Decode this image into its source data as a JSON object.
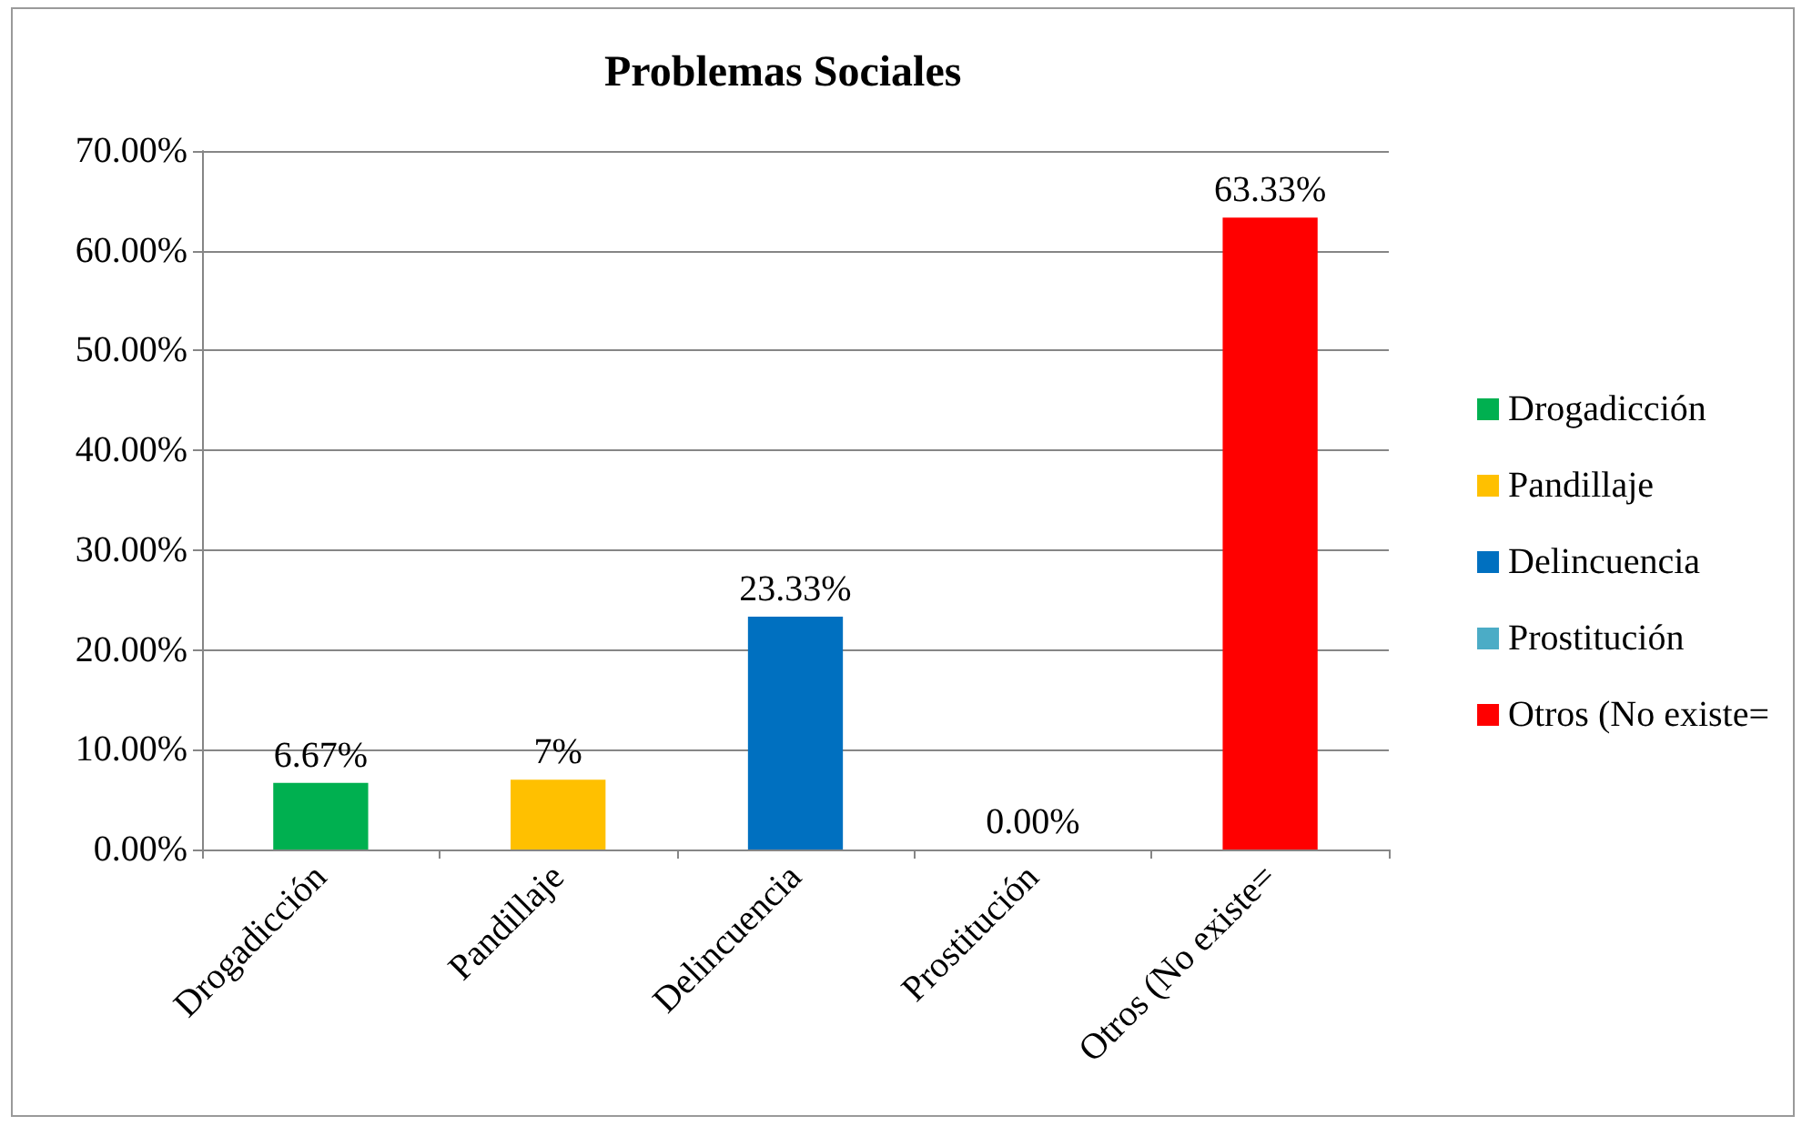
{
  "chart_data": {
    "type": "bar",
    "title": "Problemas Sociales",
    "categories": [
      "Drogadicción",
      "Pandillaje",
      "Delincuencia",
      "Prostitución",
      "Otros (No existe="
    ],
    "series": [
      {
        "name": "Drogadicción",
        "color": "#00b050",
        "values": [
          6.67,
          null,
          null,
          null,
          null
        ],
        "value_labels": [
          "6.67%",
          null,
          null,
          null,
          null
        ]
      },
      {
        "name": "Pandillaje",
        "color": "#ffc000",
        "values": [
          null,
          7,
          null,
          null,
          null
        ],
        "value_labels": [
          null,
          "7%",
          null,
          null,
          null
        ]
      },
      {
        "name": "Delincuencia",
        "color": "#0070c0",
        "values": [
          null,
          null,
          23.33,
          null,
          null
        ],
        "value_labels": [
          null,
          null,
          "23.33%",
          null,
          null
        ]
      },
      {
        "name": "Prostitución",
        "color": "#4bacc6",
        "values": [
          null,
          null,
          null,
          0,
          null
        ],
        "value_labels": [
          null,
          null,
          null,
          "0.00%",
          null
        ]
      },
      {
        "name": "Otros (No existe=",
        "color": "#ff0000",
        "values": [
          null,
          null,
          null,
          null,
          63.33
        ],
        "value_labels": [
          null,
          null,
          null,
          null,
          "63.33%"
        ]
      }
    ],
    "ylim": [
      0,
      70
    ],
    "yticks": [
      {
        "value": 0,
        "label": "0.00%"
      },
      {
        "value": 10,
        "label": "10.00%"
      },
      {
        "value": 20,
        "label": "20.00%"
      },
      {
        "value": 30,
        "label": "30.00%"
      },
      {
        "value": 40,
        "label": "40.00%"
      },
      {
        "value": 50,
        "label": "50.00%"
      },
      {
        "value": 60,
        "label": "60.00%"
      },
      {
        "value": 70,
        "label": "70.00%"
      }
    ],
    "grid": "y",
    "legend": "right"
  }
}
